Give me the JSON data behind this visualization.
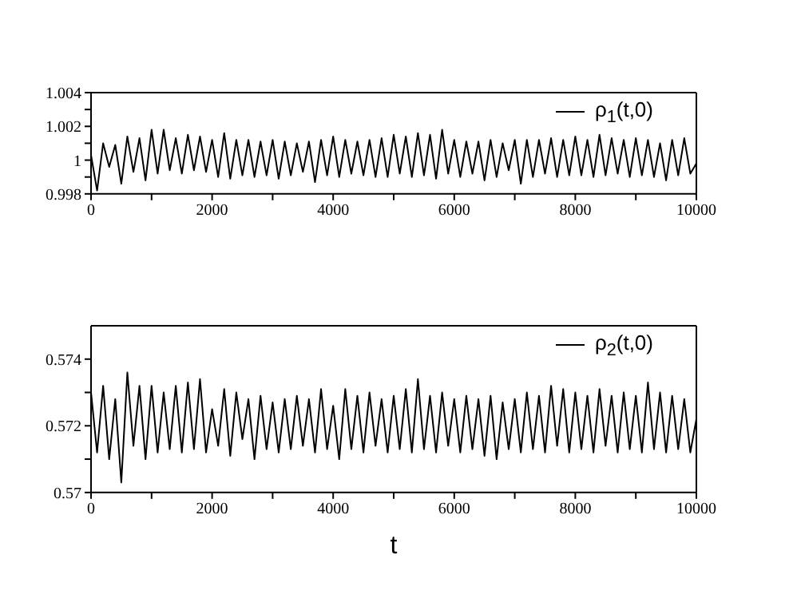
{
  "chart_data": [
    {
      "type": "line",
      "x": [
        0,
        100,
        200,
        300,
        400,
        500,
        600,
        700,
        800,
        900,
        1000,
        1100,
        1200,
        1300,
        1400,
        1500,
        1600,
        1700,
        1800,
        1900,
        2000,
        2100,
        2200,
        2300,
        2400,
        2500,
        2600,
        2700,
        2800,
        2900,
        3000,
        3100,
        3200,
        3300,
        3400,
        3500,
        3600,
        3700,
        3800,
        3900,
        4000,
        4100,
        4200,
        4300,
        4400,
        4500,
        4600,
        4700,
        4800,
        4900,
        5000,
        5100,
        5200,
        5300,
        5400,
        5500,
        5600,
        5700,
        5800,
        5900,
        6000,
        6100,
        6200,
        6300,
        6400,
        6500,
        6600,
        6700,
        6800,
        6900,
        7000,
        7100,
        7200,
        7300,
        7400,
        7500,
        7600,
        7700,
        7800,
        7900,
        8000,
        8100,
        8200,
        8300,
        8400,
        8500,
        8600,
        8700,
        8800,
        8900,
        9000,
        9100,
        9200,
        9300,
        9400,
        9500,
        9600,
        9700,
        9800,
        9900,
        10000
      ],
      "series": [
        {
          "name": "ρ$_{1}$(t,0)",
          "color": "#000000",
          "values": [
            1.0003,
            0.9982,
            1.001,
            0.9996,
            1.0009,
            0.9986,
            1.0014,
            0.9993,
            1.0013,
            0.9988,
            1.0018,
            0.9992,
            1.0018,
            0.9994,
            1.0013,
            0.9992,
            1.0015,
            0.9994,
            1.0014,
            0.9993,
            1.0012,
            0.999,
            1.0016,
            0.9989,
            1.0012,
            0.9991,
            1.0012,
            0.999,
            1.0011,
            0.9991,
            1.0012,
            0.9989,
            1.0011,
            0.9991,
            1.001,
            0.9993,
            1.0011,
            0.9987,
            1.0012,
            0.9991,
            1.0014,
            0.999,
            1.0012,
            0.9992,
            1.0011,
            0.9991,
            1.0012,
            0.999,
            1.0013,
            0.999,
            1.0015,
            0.9992,
            1.0014,
            0.999,
            1.0016,
            0.9991,
            1.0015,
            0.9989,
            1.0018,
            0.9992,
            1.0012,
            0.999,
            1.0011,
            0.9992,
            1.0011,
            0.9988,
            1.0012,
            0.999,
            1.001,
            0.9994,
            1.0012,
            0.9986,
            1.0012,
            0.999,
            1.0012,
            0.9992,
            1.0013,
            0.999,
            1.0012,
            0.9991,
            1.0014,
            0.9991,
            1.0012,
            0.999,
            1.0015,
            0.9991,
            1.0013,
            0.9992,
            1.0012,
            0.999,
            1.0013,
            0.9991,
            1.0012,
            0.999,
            1.001,
            0.9988,
            1.0012,
            0.9991,
            1.0013,
            0.9992,
            0.9998
          ]
        }
      ],
      "xlim": [
        0,
        10000
      ],
      "xticks": [
        0,
        {
          "value": 1000,
          "label": null
        },
        2000,
        {
          "value": 3000,
          "label": null
        },
        4000,
        {
          "value": 5000,
          "label": null
        },
        6000,
        {
          "value": 7000,
          "label": null
        },
        8000,
        {
          "value": 9000,
          "label": null
        },
        10000
      ],
      "ylim": [
        0.998,
        1.004
      ],
      "yticks": [
        0.998,
        {
          "value": 0.999,
          "label": null
        },
        1,
        {
          "value": 1.001,
          "label": null
        },
        1.002,
        {
          "value": 1.003,
          "label": null
        },
        1.004
      ],
      "legend": "top right"
    },
    {
      "type": "line",
      "xlabel": "t",
      "x": [
        0,
        100,
        200,
        300,
        400,
        500,
        600,
        700,
        800,
        900,
        1000,
        1100,
        1200,
        1300,
        1400,
        1500,
        1600,
        1700,
        1800,
        1900,
        2000,
        2100,
        2200,
        2300,
        2400,
        2500,
        2600,
        2700,
        2800,
        2900,
        3000,
        3100,
        3200,
        3300,
        3400,
        3500,
        3600,
        3700,
        3800,
        3900,
        4000,
        4100,
        4200,
        4300,
        4400,
        4500,
        4600,
        4700,
        4800,
        4900,
        5000,
        5100,
        5200,
        5300,
        5400,
        5500,
        5600,
        5700,
        5800,
        5900,
        6000,
        6100,
        6200,
        6300,
        6400,
        6500,
        6600,
        6700,
        6800,
        6900,
        7000,
        7100,
        7200,
        7300,
        7400,
        7500,
        7600,
        7700,
        7800,
        7900,
        8000,
        8100,
        8200,
        8300,
        8400,
        8500,
        8600,
        8700,
        8800,
        8900,
        9000,
        9100,
        9200,
        9300,
        9400,
        9500,
        9600,
        9700,
        9800,
        9900,
        10000
      ],
      "series": [
        {
          "name": "ρ$_{2}$(t,0)",
          "color": "#000000",
          "values": [
            0.573,
            0.5712,
            0.5732,
            0.571,
            0.5728,
            0.5703,
            0.5736,
            0.5714,
            0.5732,
            0.571,
            0.5732,
            0.5712,
            0.573,
            0.5713,
            0.5732,
            0.5712,
            0.5733,
            0.5713,
            0.5734,
            0.5712,
            0.5725,
            0.5714,
            0.5731,
            0.5711,
            0.573,
            0.5716,
            0.5728,
            0.571,
            0.5729,
            0.5713,
            0.5727,
            0.5712,
            0.5728,
            0.5713,
            0.5729,
            0.5714,
            0.5728,
            0.5712,
            0.5731,
            0.5713,
            0.5726,
            0.571,
            0.5731,
            0.5713,
            0.5729,
            0.5712,
            0.573,
            0.5714,
            0.5728,
            0.5712,
            0.5729,
            0.5713,
            0.5731,
            0.5712,
            0.5734,
            0.5713,
            0.5729,
            0.5712,
            0.573,
            0.5714,
            0.5728,
            0.5712,
            0.5729,
            0.5713,
            0.5728,
            0.5711,
            0.5729,
            0.571,
            0.5727,
            0.5713,
            0.5728,
            0.5712,
            0.573,
            0.5713,
            0.5729,
            0.5712,
            0.5732,
            0.5714,
            0.5731,
            0.5712,
            0.573,
            0.5713,
            0.5729,
            0.5712,
            0.5731,
            0.5714,
            0.5729,
            0.5712,
            0.573,
            0.5713,
            0.5729,
            0.5712,
            0.5733,
            0.5713,
            0.573,
            0.5712,
            0.5729,
            0.5713,
            0.5728,
            0.5712,
            0.5722
          ]
        }
      ],
      "xlim": [
        0,
        10000
      ],
      "xticks": [
        0,
        {
          "value": 1000,
          "label": null
        },
        2000,
        {
          "value": 3000,
          "label": null
        },
        4000,
        {
          "value": 5000,
          "label": null
        },
        6000,
        {
          "value": 7000,
          "label": null
        },
        8000,
        {
          "value": 9000,
          "label": null
        },
        10000
      ],
      "ylim": [
        0.57,
        0.575
      ],
      "yticks": [
        0.57,
        {
          "value": 0.571,
          "label": null
        },
        0.572,
        {
          "value": 0.573,
          "label": null
        },
        0.574
      ],
      "legend": "top right"
    }
  ]
}
